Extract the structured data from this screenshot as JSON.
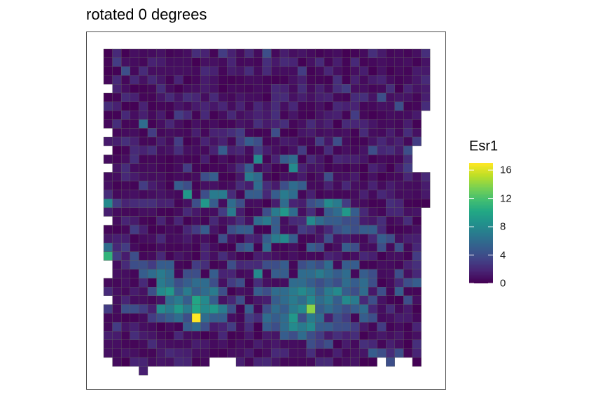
{
  "chart_data": {
    "type": "heatmap",
    "title": "rotated 0 degrees",
    "colorbar": {
      "title": "Esr1",
      "range": [
        0,
        17
      ],
      "ticks": [
        0,
        4,
        8,
        12,
        16
      ],
      "tick_labels": [
        "0",
        "4",
        "8",
        "12",
        "16"
      ],
      "palette": "viridis"
    },
    "grid": {
      "cols": 37,
      "rows": 37
    },
    "missing_cells": [
      [
        0,
        4
      ],
      [
        0,
        9
      ],
      [
        0,
        11
      ],
      [
        0,
        13
      ],
      [
        0,
        19
      ],
      [
        0,
        24
      ],
      [
        0,
        25
      ],
      [
        0,
        28
      ],
      [
        0,
        35
      ],
      [
        0,
        36
      ],
      [
        1,
        36
      ],
      [
        2,
        36
      ],
      [
        3,
        36
      ],
      [
        5,
        36
      ],
      [
        6,
        36
      ],
      [
        7,
        36
      ],
      [
        8,
        36
      ],
      [
        9,
        36
      ],
      [
        10,
        36
      ],
      [
        11,
        36
      ],
      [
        12,
        35
      ],
      [
        12,
        36
      ],
      [
        13,
        35
      ],
      [
        13,
        36
      ],
      [
        14,
        35
      ],
      [
        14,
        36
      ],
      [
        15,
        36
      ],
      [
        16,
        36
      ],
      [
        17,
        36
      ],
      [
        18,
        36
      ],
      [
        19,
        36
      ],
      [
        20,
        36
      ],
      [
        21,
        36
      ],
      [
        22,
        36
      ],
      [
        23,
        36
      ],
      [
        24,
        36
      ],
      [
        25,
        36
      ],
      [
        26,
        36
      ],
      [
        27,
        36
      ],
      [
        28,
        36
      ],
      [
        29,
        36
      ],
      [
        30,
        36
      ],
      [
        31,
        35
      ],
      [
        31,
        36
      ],
      [
        32,
        36
      ],
      [
        33,
        35
      ],
      [
        33,
        36
      ],
      [
        34,
        35
      ],
      [
        34,
        36
      ],
      [
        35,
        36
      ],
      [
        36,
        36
      ],
      [
        36,
        7
      ],
      [
        36,
        8
      ],
      [
        36,
        9
      ],
      [
        36,
        10
      ],
      [
        36,
        11
      ],
      [
        36,
        12
      ],
      [
        36,
        13
      ],
      [
        36,
        18
      ],
      [
        36,
        19
      ],
      [
        36,
        20
      ],
      [
        36,
        21
      ],
      [
        36,
        22
      ],
      [
        36,
        23
      ],
      [
        36,
        24
      ],
      [
        36,
        25
      ],
      [
        36,
        26
      ],
      [
        36,
        27
      ],
      [
        36,
        28
      ],
      [
        36,
        29
      ],
      [
        36,
        30
      ],
      [
        36,
        31
      ],
      [
        36,
        32
      ],
      [
        36,
        33
      ],
      [
        36,
        34
      ],
      [
        36,
        35
      ],
      [
        35,
        11
      ],
      [
        35,
        12
      ],
      [
        35,
        13
      ]
    ],
    "hot_cells": [
      [
        20,
        1,
        2
      ],
      [
        1,
        1,
        3
      ],
      [
        2,
        2,
        4
      ],
      [
        1,
        3,
        2
      ],
      [
        2,
        5,
        2
      ],
      [
        4,
        8,
        6
      ],
      [
        5,
        9,
        3
      ],
      [
        8,
        10,
        3
      ],
      [
        3,
        11,
        2
      ],
      [
        15,
        10,
        3
      ],
      [
        16,
        10,
        5
      ],
      [
        17,
        10,
        4
      ],
      [
        17,
        11,
        3
      ],
      [
        22,
        11,
        3
      ],
      [
        23,
        12,
        2
      ],
      [
        9,
        13,
        3
      ],
      [
        13,
        11,
        5
      ],
      [
        17,
        12,
        8
      ],
      [
        20,
        12,
        5
      ],
      [
        21,
        12,
        6
      ],
      [
        21,
        13,
        8
      ],
      [
        16,
        13,
        5
      ],
      [
        17,
        14,
        6
      ],
      [
        25,
        14,
        4
      ],
      [
        30,
        11,
        4
      ],
      [
        34,
        11,
        4
      ],
      [
        35,
        10,
        3
      ],
      [
        34,
        13,
        3
      ],
      [
        4,
        15,
        3
      ],
      [
        8,
        15,
        5
      ],
      [
        9,
        15,
        4
      ],
      [
        11,
        14,
        4
      ],
      [
        12,
        14,
        5
      ],
      [
        16,
        14,
        7
      ],
      [
        17,
        15,
        6
      ],
      [
        20,
        15,
        4
      ],
      [
        21,
        15,
        6
      ],
      [
        22,
        15,
        5
      ],
      [
        9,
        16,
        9
      ],
      [
        11,
        16,
        4
      ],
      [
        12,
        16,
        7
      ],
      [
        13,
        16,
        7
      ],
      [
        16,
        16,
        5
      ],
      [
        17,
        16,
        5
      ],
      [
        19,
        16,
        5
      ],
      [
        20,
        16,
        7
      ],
      [
        21,
        16,
        6
      ],
      [
        0,
        17,
        8
      ],
      [
        1,
        17,
        3
      ],
      [
        10,
        17,
        4
      ],
      [
        11,
        17,
        9
      ],
      [
        12,
        17,
        5
      ],
      [
        14,
        17,
        6
      ],
      [
        15,
        17,
        4
      ],
      [
        20,
        17,
        6
      ],
      [
        23,
        17,
        4
      ],
      [
        24,
        17,
        5
      ],
      [
        25,
        17,
        8
      ],
      [
        26,
        17,
        7
      ],
      [
        27,
        17,
        3
      ],
      [
        13,
        18,
        3
      ],
      [
        14,
        18,
        7
      ],
      [
        18,
        18,
        4
      ],
      [
        19,
        18,
        7
      ],
      [
        20,
        18,
        9
      ],
      [
        21,
        18,
        6
      ],
      [
        25,
        18,
        5
      ],
      [
        26,
        18,
        6
      ],
      [
        27,
        18,
        9
      ],
      [
        28,
        18,
        5
      ],
      [
        17,
        19,
        6
      ],
      [
        18,
        19,
        7
      ],
      [
        19,
        19,
        5
      ],
      [
        23,
        19,
        8
      ],
      [
        24,
        19,
        6
      ],
      [
        25,
        19,
        5
      ],
      [
        26,
        19,
        5
      ],
      [
        27,
        19,
        4
      ],
      [
        28,
        19,
        4
      ],
      [
        3,
        20,
        3
      ],
      [
        10,
        20,
        3
      ],
      [
        11,
        20,
        5
      ],
      [
        14,
        20,
        4
      ],
      [
        15,
        20,
        5
      ],
      [
        16,
        20,
        5
      ],
      [
        19,
        20,
        5
      ],
      [
        22,
        20,
        3
      ],
      [
        26,
        20,
        4
      ],
      [
        27,
        20,
        5
      ],
      [
        28,
        20,
        4
      ],
      [
        29,
        20,
        5
      ],
      [
        30,
        20,
        5
      ],
      [
        13,
        21,
        4
      ],
      [
        18,
        21,
        5
      ],
      [
        19,
        21,
        7
      ],
      [
        20,
        21,
        8
      ],
      [
        21,
        21,
        5
      ],
      [
        25,
        21,
        4
      ],
      [
        31,
        21,
        5
      ],
      [
        32,
        21,
        4
      ],
      [
        0,
        22,
        6
      ],
      [
        0,
        23,
        11
      ],
      [
        1,
        23,
        3
      ],
      [
        2,
        22,
        3
      ],
      [
        3,
        23,
        4
      ],
      [
        15,
        22,
        4
      ],
      [
        16,
        22,
        5
      ],
      [
        18,
        22,
        6
      ],
      [
        23,
        22,
        5
      ],
      [
        24,
        22,
        4
      ],
      [
        27,
        22,
        5
      ],
      [
        28,
        22,
        4
      ],
      [
        31,
        22,
        4
      ],
      [
        33,
        22,
        4
      ],
      [
        3,
        24,
        4
      ],
      [
        4,
        24,
        4
      ],
      [
        5,
        24,
        3
      ],
      [
        6,
        24,
        5
      ],
      [
        7,
        24,
        5
      ],
      [
        10,
        24,
        3
      ],
      [
        14,
        24,
        4
      ],
      [
        18,
        24,
        4
      ],
      [
        19,
        24,
        4
      ],
      [
        20,
        24,
        5
      ],
      [
        22,
        24,
        4
      ],
      [
        23,
        24,
        5
      ],
      [
        24,
        24,
        4
      ],
      [
        25,
        24,
        6
      ],
      [
        27,
        24,
        5
      ],
      [
        28,
        24,
        5
      ],
      [
        35,
        23,
        3
      ],
      [
        36,
        23,
        4
      ],
      [
        4,
        25,
        5
      ],
      [
        5,
        25,
        6
      ],
      [
        6,
        25,
        7
      ],
      [
        7,
        25,
        6
      ],
      [
        9,
        25,
        4
      ],
      [
        10,
        25,
        4
      ],
      [
        12,
        25,
        5
      ],
      [
        17,
        25,
        8
      ],
      [
        19,
        25,
        5
      ],
      [
        20,
        25,
        5
      ],
      [
        22,
        25,
        6
      ],
      [
        23,
        25,
        6
      ],
      [
        24,
        25,
        7
      ],
      [
        25,
        25,
        6
      ],
      [
        26,
        25,
        5
      ],
      [
        27,
        25,
        6
      ],
      [
        29,
        25,
        5
      ],
      [
        30,
        25,
        4
      ],
      [
        33,
        25,
        4
      ],
      [
        6,
        26,
        7
      ],
      [
        7,
        26,
        6
      ],
      [
        8,
        26,
        4
      ],
      [
        9,
        26,
        5
      ],
      [
        10,
        26,
        6
      ],
      [
        11,
        26,
        6
      ],
      [
        12,
        26,
        4
      ],
      [
        14,
        26,
        3
      ],
      [
        15,
        26,
        4
      ],
      [
        21,
        26,
        6
      ],
      [
        22,
        26,
        6
      ],
      [
        23,
        26,
        5
      ],
      [
        24,
        26,
        4
      ],
      [
        25,
        26,
        5
      ],
      [
        26,
        26,
        4
      ],
      [
        27,
        26,
        6
      ],
      [
        28,
        26,
        5
      ],
      [
        29,
        26,
        6
      ],
      [
        30,
        26,
        4
      ],
      [
        34,
        26,
        4
      ],
      [
        35,
        26,
        5
      ],
      [
        36,
        26,
        3
      ],
      [
        5,
        27,
        4
      ],
      [
        6,
        27,
        8
      ],
      [
        7,
        27,
        9
      ],
      [
        8,
        27,
        5
      ],
      [
        9,
        27,
        7
      ],
      [
        10,
        27,
        5
      ],
      [
        11,
        27,
        6
      ],
      [
        12,
        27,
        7
      ],
      [
        13,
        27,
        4
      ],
      [
        17,
        27,
        5
      ],
      [
        18,
        27,
        4
      ],
      [
        19,
        27,
        6
      ],
      [
        20,
        27,
        6
      ],
      [
        21,
        27,
        7
      ],
      [
        22,
        27,
        8
      ],
      [
        23,
        27,
        7
      ],
      [
        24,
        27,
        5
      ],
      [
        25,
        27,
        7
      ],
      [
        26,
        27,
        8
      ],
      [
        27,
        27,
        5
      ],
      [
        28,
        27,
        4
      ],
      [
        29,
        27,
        6
      ],
      [
        31,
        27,
        4
      ],
      [
        33,
        27,
        5
      ],
      [
        7,
        28,
        6
      ],
      [
        8,
        28,
        7
      ],
      [
        9,
        28,
        5
      ],
      [
        10,
        28,
        10
      ],
      [
        11,
        28,
        8
      ],
      [
        12,
        28,
        5
      ],
      [
        15,
        28,
        4
      ],
      [
        19,
        28,
        5
      ],
      [
        20,
        28,
        6
      ],
      [
        21,
        28,
        7
      ],
      [
        22,
        28,
        6
      ],
      [
        23,
        28,
        8
      ],
      [
        24,
        28,
        6
      ],
      [
        25,
        28,
        7
      ],
      [
        26,
        28,
        5
      ],
      [
        27,
        28,
        8
      ],
      [
        28,
        28,
        7
      ],
      [
        30,
        28,
        4
      ],
      [
        34,
        28,
        4
      ],
      [
        0,
        29,
        3
      ],
      [
        2,
        29,
        4
      ],
      [
        3,
        29,
        4
      ],
      [
        4,
        29,
        3
      ],
      [
        6,
        29,
        8
      ],
      [
        7,
        29,
        7
      ],
      [
        8,
        29,
        9
      ],
      [
        9,
        29,
        7
      ],
      [
        10,
        29,
        10
      ],
      [
        11,
        29,
        8
      ],
      [
        12,
        29,
        9
      ],
      [
        13,
        29,
        7
      ],
      [
        14,
        29,
        4
      ],
      [
        16,
        29,
        5
      ],
      [
        18,
        29,
        4
      ],
      [
        19,
        29,
        6
      ],
      [
        20,
        29,
        5
      ],
      [
        21,
        29,
        7
      ],
      [
        22,
        29,
        8
      ],
      [
        23,
        29,
        14
      ],
      [
        24,
        29,
        5
      ],
      [
        25,
        29,
        6
      ],
      [
        26,
        29,
        5
      ],
      [
        27,
        29,
        4
      ],
      [
        28,
        29,
        5
      ],
      [
        29,
        29,
        6
      ],
      [
        5,
        30,
        3
      ],
      [
        6,
        30,
        4
      ],
      [
        7,
        30,
        5
      ],
      [
        8,
        30,
        6
      ],
      [
        9,
        30,
        4
      ],
      [
        10,
        30,
        17
      ],
      [
        11,
        30,
        6
      ],
      [
        12,
        30,
        5
      ],
      [
        13,
        30,
        5
      ],
      [
        16,
        30,
        3
      ],
      [
        18,
        30,
        6
      ],
      [
        19,
        30,
        5
      ],
      [
        20,
        30,
        6
      ],
      [
        21,
        30,
        9
      ],
      [
        22,
        30,
        4
      ],
      [
        23,
        30,
        7
      ],
      [
        24,
        30,
        6
      ],
      [
        26,
        30,
        4
      ],
      [
        27,
        30,
        3
      ],
      [
        29,
        30,
        5
      ],
      [
        30,
        30,
        4
      ],
      [
        1,
        31,
        3
      ],
      [
        9,
        31,
        5
      ],
      [
        10,
        31,
        6
      ],
      [
        11,
        31,
        4
      ],
      [
        14,
        31,
        3
      ],
      [
        18,
        31,
        5
      ],
      [
        19,
        31,
        4
      ],
      [
        20,
        31,
        6
      ],
      [
        21,
        31,
        8
      ],
      [
        22,
        31,
        7
      ],
      [
        23,
        31,
        8
      ],
      [
        24,
        31,
        5
      ],
      [
        25,
        31,
        5
      ],
      [
        26,
        31,
        4
      ],
      [
        27,
        31,
        4
      ],
      [
        28,
        31,
        3
      ],
      [
        31,
        31,
        3
      ],
      [
        20,
        32,
        5
      ],
      [
        21,
        32,
        4
      ],
      [
        22,
        32,
        6
      ],
      [
        23,
        32,
        4
      ],
      [
        24,
        32,
        3
      ],
      [
        23,
        33,
        4
      ],
      [
        24,
        33,
        3
      ],
      [
        25,
        33,
        4
      ],
      [
        30,
        34,
        5
      ],
      [
        31,
        34,
        4
      ],
      [
        33,
        34,
        4
      ],
      [
        32,
        35,
        4
      ],
      [
        13,
        0,
        3
      ],
      [
        18,
        0,
        4
      ],
      [
        22,
        2,
        3
      ],
      [
        27,
        4,
        3
      ],
      [
        31,
        5,
        4
      ],
      [
        33,
        6,
        4
      ],
      [
        8,
        7,
        3
      ],
      [
        28,
        7,
        3
      ],
      [
        15,
        9,
        3
      ],
      [
        19,
        9,
        4
      ],
      [
        24,
        10,
        3
      ],
      [
        26,
        10,
        4
      ]
    ]
  }
}
